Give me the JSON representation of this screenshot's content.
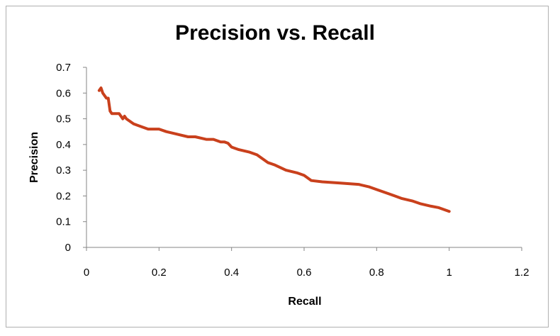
{
  "chart_data": {
    "type": "line",
    "title": "Precision vs. Recall",
    "xlabel": "Recall",
    "ylabel": "Precision",
    "xlim": [
      0,
      1.2
    ],
    "ylim": [
      0,
      0.7
    ],
    "x_ticks": [
      "0",
      "0.2",
      "0.4",
      "0.6",
      "0.8",
      "1",
      "1.2"
    ],
    "y_ticks": [
      "0",
      "0.1",
      "0.2",
      "0.3",
      "0.4",
      "0.5",
      "0.6",
      "0.7"
    ],
    "grid": false,
    "legend": "none",
    "line_color": "#c9401c",
    "series": [
      {
        "x": [
          0.035,
          0.04,
          0.045,
          0.05,
          0.055,
          0.06,
          0.065,
          0.07,
          0.08,
          0.09,
          0.095,
          0.1,
          0.105,
          0.11,
          0.13,
          0.15,
          0.17,
          0.2,
          0.22,
          0.25,
          0.28,
          0.3,
          0.33,
          0.35,
          0.37,
          0.38,
          0.39,
          0.4,
          0.42,
          0.45,
          0.47,
          0.5,
          0.52,
          0.55,
          0.58,
          0.6,
          0.62,
          0.65,
          0.7,
          0.75,
          0.78,
          0.8,
          0.83,
          0.85,
          0.87,
          0.9,
          0.92,
          0.95,
          0.97,
          1.0
        ],
        "y": [
          0.61,
          0.62,
          0.6,
          0.59,
          0.58,
          0.58,
          0.53,
          0.52,
          0.52,
          0.52,
          0.51,
          0.5,
          0.51,
          0.5,
          0.48,
          0.47,
          0.46,
          0.46,
          0.45,
          0.44,
          0.43,
          0.43,
          0.42,
          0.42,
          0.41,
          0.41,
          0.405,
          0.39,
          0.38,
          0.37,
          0.36,
          0.33,
          0.32,
          0.3,
          0.29,
          0.28,
          0.26,
          0.255,
          0.25,
          0.245,
          0.235,
          0.225,
          0.21,
          0.2,
          0.19,
          0.18,
          0.17,
          0.16,
          0.155,
          0.14
        ]
      }
    ]
  }
}
